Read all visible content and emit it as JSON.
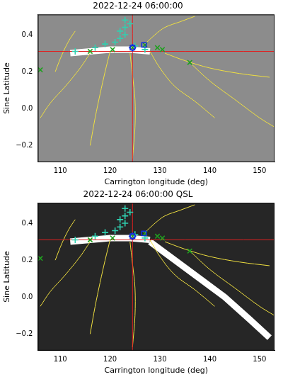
{
  "chart_data": [
    {
      "type": "scatter",
      "title": "2022-12-24 06:00:00",
      "x_label": "Carrington longitude (deg)",
      "y_label": "Sine Latitude",
      "xlim": [
        105.5,
        153
      ],
      "ylim": [
        -0.29,
        0.51
      ],
      "xticks": [
        110,
        120,
        130,
        140,
        150
      ],
      "yticks": [
        {
          "value": -0.2,
          "label": "−0.2"
        },
        {
          "value": 0,
          "label": "0.0"
        },
        {
          "value": 0.2,
          "label": "0.2"
        },
        {
          "value": 0.4,
          "label": "0.4"
        }
      ],
      "grid": false,
      "series": [
        {
          "type": "line",
          "color": "#ffffff",
          "line_style": "band",
          "x": [
            112,
            116,
            120,
            124,
            128
          ],
          "values": [
            0.3,
            0.31,
            0.32,
            0.32,
            0.31
          ]
        },
        {
          "type": "line",
          "color": "#f0e040",
          "line_style": "solid",
          "x": [
            116,
            114,
            111,
            108,
            106
          ],
          "values": [
            0.3,
            0.22,
            0.12,
            0.03,
            -0.05
          ]
        },
        {
          "type": "line",
          "color": "#f0e040",
          "line_style": "solid",
          "x": [
            120,
            119,
            118,
            117,
            116
          ],
          "values": [
            0.31,
            0.2,
            0.08,
            -0.05,
            -0.2
          ]
        },
        {
          "type": "line",
          "color": "#f0e040",
          "line_style": "solid",
          "x": [
            124,
            124.5,
            125,
            125,
            124.5
          ],
          "values": [
            0.3,
            0.18,
            0.05,
            -0.1,
            -0.27
          ]
        },
        {
          "type": "line",
          "color": "#f0e040",
          "line_style": "solid",
          "x": [
            128,
            130,
            133,
            137,
            141
          ],
          "values": [
            0.31,
            0.22,
            0.12,
            0.04,
            -0.05
          ]
        },
        {
          "type": "line",
          "color": "#f0e040",
          "line_style": "solid",
          "x": [
            131,
            135,
            140,
            146,
            152
          ],
          "values": [
            0.3,
            0.26,
            0.22,
            0.19,
            0.17
          ]
        },
        {
          "type": "line",
          "color": "#f0e040",
          "line_style": "solid",
          "x": [
            136,
            140,
            145,
            150,
            153
          ],
          "values": [
            0.25,
            0.15,
            0.05,
            -0.05,
            -0.1
          ]
        },
        {
          "type": "line",
          "color": "#f0e040",
          "line_style": "solid",
          "x": [
            113,
            112,
            111,
            110,
            109
          ],
          "values": [
            0.42,
            0.38,
            0.33,
            0.27,
            0.2
          ]
        },
        {
          "type": "line",
          "color": "#f0e040",
          "line_style": "solid",
          "x": [
            127,
            129,
            131,
            134,
            137
          ],
          "values": [
            0.35,
            0.4,
            0.44,
            0.47,
            0.5
          ]
        },
        {
          "type": "line",
          "color": "#e02020",
          "line_style": "solid",
          "x": [
            124.5,
            124.5
          ],
          "values": [
            -0.29,
            0.51
          ]
        },
        {
          "type": "line",
          "color": "#e02020",
          "line_style": "solid",
          "x": [
            105.5,
            153
          ],
          "values": [
            0.31,
            0.31
          ]
        },
        {
          "type": "scatter",
          "color": "#30d0b0",
          "marker": "cross",
          "x": [
            113,
            117,
            119,
            121,
            122,
            123,
            122,
            123,
            124,
            123,
            125,
            127
          ],
          "values": [
            0.31,
            0.33,
            0.35,
            0.36,
            0.38,
            0.4,
            0.42,
            0.44,
            0.46,
            0.48,
            0.34,
            0.32
          ]
        },
        {
          "type": "scatter",
          "color": "#20a020",
          "marker": "x",
          "x": [
            106,
            116,
            120.5,
            124.5,
            127,
            129.5,
            130.5,
            136
          ],
          "values": [
            0.21,
            0.31,
            0.32,
            0.33,
            0.345,
            0.33,
            0.32,
            0.25
          ]
        },
        {
          "type": "scatter",
          "color": "#1030e0",
          "marker": "square",
          "x": [
            124.5,
            126.8
          ],
          "values": [
            0.33,
            0.345
          ]
        },
        {
          "type": "scatter",
          "color": "#1030e0",
          "marker": "diamond",
          "x": [
            124.5
          ],
          "values": [
            0.33
          ]
        }
      ]
    },
    {
      "type": "scatter",
      "title": "2022-12-24 06:00:00 QSL",
      "x_label": "Carrington longitude (deg)",
      "y_label": "Sine Latitude",
      "xlim": [
        105.5,
        153
      ],
      "ylim": [
        -0.29,
        0.51
      ],
      "xticks": [
        110,
        120,
        130,
        140,
        150
      ],
      "yticks": [
        {
          "value": -0.2,
          "label": "−0.2"
        },
        {
          "value": 0,
          "label": "0.0"
        },
        {
          "value": 0.2,
          "label": "0.2"
        },
        {
          "value": 0.4,
          "label": "0.4"
        }
      ],
      "grid": false,
      "series": [
        {
          "type": "line",
          "color": "#ffffff",
          "line_style": "band",
          "x": [
            128,
            133,
            138,
            143,
            148,
            152
          ],
          "values": [
            0.3,
            0.2,
            0.1,
            0.0,
            -0.12,
            -0.22
          ]
        },
        {
          "type": "line",
          "color": "#ffffff",
          "line_style": "band",
          "x": [
            112,
            116,
            120,
            124,
            128
          ],
          "values": [
            0.3,
            0.31,
            0.32,
            0.32,
            0.31
          ]
        },
        {
          "type": "line",
          "color": "#f0e040",
          "line_style": "solid",
          "x": [
            116,
            114,
            111,
            108,
            106
          ],
          "values": [
            0.3,
            0.22,
            0.12,
            0.03,
            -0.05
          ]
        },
        {
          "type": "line",
          "color": "#f0e040",
          "line_style": "solid",
          "x": [
            120,
            119,
            118,
            117,
            116
          ],
          "values": [
            0.31,
            0.2,
            0.08,
            -0.05,
            -0.2
          ]
        },
        {
          "type": "line",
          "color": "#f0e040",
          "line_style": "solid",
          "x": [
            124,
            124.5,
            125,
            125,
            124.5
          ],
          "values": [
            0.3,
            0.18,
            0.05,
            -0.1,
            -0.27
          ]
        },
        {
          "type": "line",
          "color": "#f0e040",
          "line_style": "solid",
          "x": [
            128,
            130,
            133,
            137,
            141
          ],
          "values": [
            0.31,
            0.22,
            0.12,
            0.04,
            -0.05
          ]
        },
        {
          "type": "line",
          "color": "#f0e040",
          "line_style": "solid",
          "x": [
            131,
            135,
            140,
            146,
            152
          ],
          "values": [
            0.3,
            0.26,
            0.22,
            0.19,
            0.17
          ]
        },
        {
          "type": "line",
          "color": "#f0e040",
          "line_style": "solid",
          "x": [
            136,
            140,
            145,
            150,
            153
          ],
          "values": [
            0.25,
            0.15,
            0.05,
            -0.05,
            -0.1
          ]
        },
        {
          "type": "line",
          "color": "#f0e040",
          "line_style": "solid",
          "x": [
            113,
            112,
            111,
            110,
            109
          ],
          "values": [
            0.42,
            0.38,
            0.33,
            0.27,
            0.2
          ]
        },
        {
          "type": "line",
          "color": "#f0e040",
          "line_style": "solid",
          "x": [
            127,
            129,
            131,
            134,
            137
          ],
          "values": [
            0.35,
            0.4,
            0.44,
            0.47,
            0.5
          ]
        },
        {
          "type": "line",
          "color": "#e02020",
          "line_style": "solid",
          "x": [
            124.5,
            124.5
          ],
          "values": [
            -0.29,
            0.51
          ]
        },
        {
          "type": "line",
          "color": "#e02020",
          "line_style": "solid",
          "x": [
            105.5,
            153
          ],
          "values": [
            0.31,
            0.31
          ]
        },
        {
          "type": "scatter",
          "color": "#30d0b0",
          "marker": "cross",
          "x": [
            113,
            117,
            119,
            121,
            122,
            123,
            122,
            123,
            124,
            123,
            125,
            127
          ],
          "values": [
            0.31,
            0.33,
            0.35,
            0.36,
            0.38,
            0.4,
            0.42,
            0.44,
            0.46,
            0.48,
            0.34,
            0.32
          ]
        },
        {
          "type": "scatter",
          "color": "#20a020",
          "marker": "x",
          "x": [
            106,
            116,
            120.5,
            124.5,
            127,
            129.5,
            130.5,
            136
          ],
          "values": [
            0.21,
            0.31,
            0.32,
            0.33,
            0.345,
            0.33,
            0.32,
            0.25
          ]
        },
        {
          "type": "scatter",
          "color": "#1030e0",
          "marker": "square",
          "x": [
            124.5,
            126.8
          ],
          "values": [
            0.33,
            0.345
          ]
        },
        {
          "type": "scatter",
          "color": "#1030e0",
          "marker": "diamond",
          "x": [
            124.5
          ],
          "values": [
            0.33
          ]
        }
      ]
    }
  ]
}
